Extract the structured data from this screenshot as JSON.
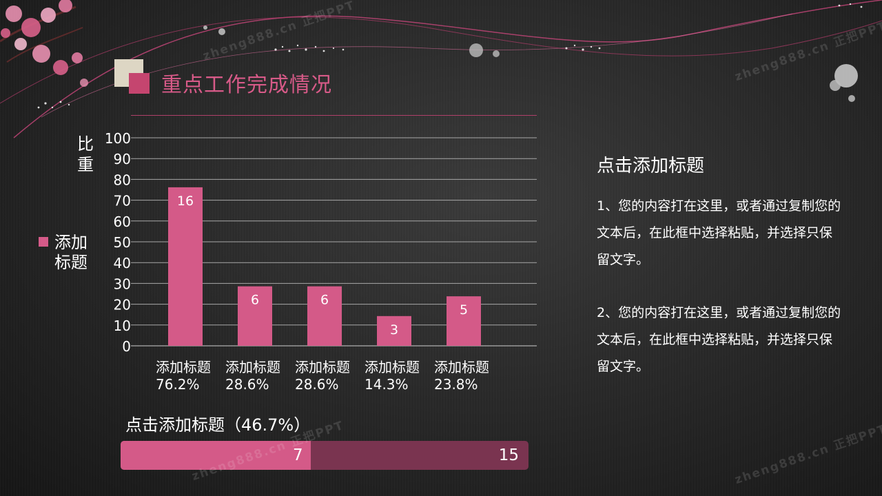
{
  "header": {
    "title": "重点工作完成情况"
  },
  "chart_data": {
    "type": "bar",
    "categories": [
      "添加标题\n76.2%",
      "添加标题\n28.6%",
      "添加标题\n28.6%",
      "添加标题\n14.3%",
      "添加标题\n23.8%"
    ],
    "series": [
      {
        "name": "添加标题",
        "values": [
          76.2,
          28.6,
          28.6,
          14.3,
          23.8
        ],
        "labels": [
          "16",
          "6",
          "6",
          "3",
          "5"
        ]
      }
    ],
    "ylabel": "比重",
    "ylim": [
      0,
      100
    ],
    "yticks": [
      0,
      10,
      20,
      30,
      40,
      50,
      60,
      70,
      80,
      90,
      100
    ],
    "grid": true,
    "legend": "left",
    "color": "#d45a88"
  },
  "right_panel": {
    "title": "点击添加标题",
    "paragraphs": [
      "1、您的内容打在这里，或者通过复制您的文本后，在此框中选择粘贴，并选择只保留文字。",
      "2、您的内容打在这里，或者通过复制您的文本后，在此框中选择粘贴，并选择只保留文字。"
    ]
  },
  "progress": {
    "label": "点击添加标题（46.7%）",
    "fraction": 0.467,
    "value_label": "7",
    "total_label": "15",
    "fill_color": "#d45a88",
    "track_color": "#7a3450"
  },
  "watermarks": [
    "zheng888.cn 正把PPT",
    "zheng888.cn 正把PPT",
    "zheng888.cn 正把PPT",
    "zheng888.cn 正把PPT"
  ]
}
